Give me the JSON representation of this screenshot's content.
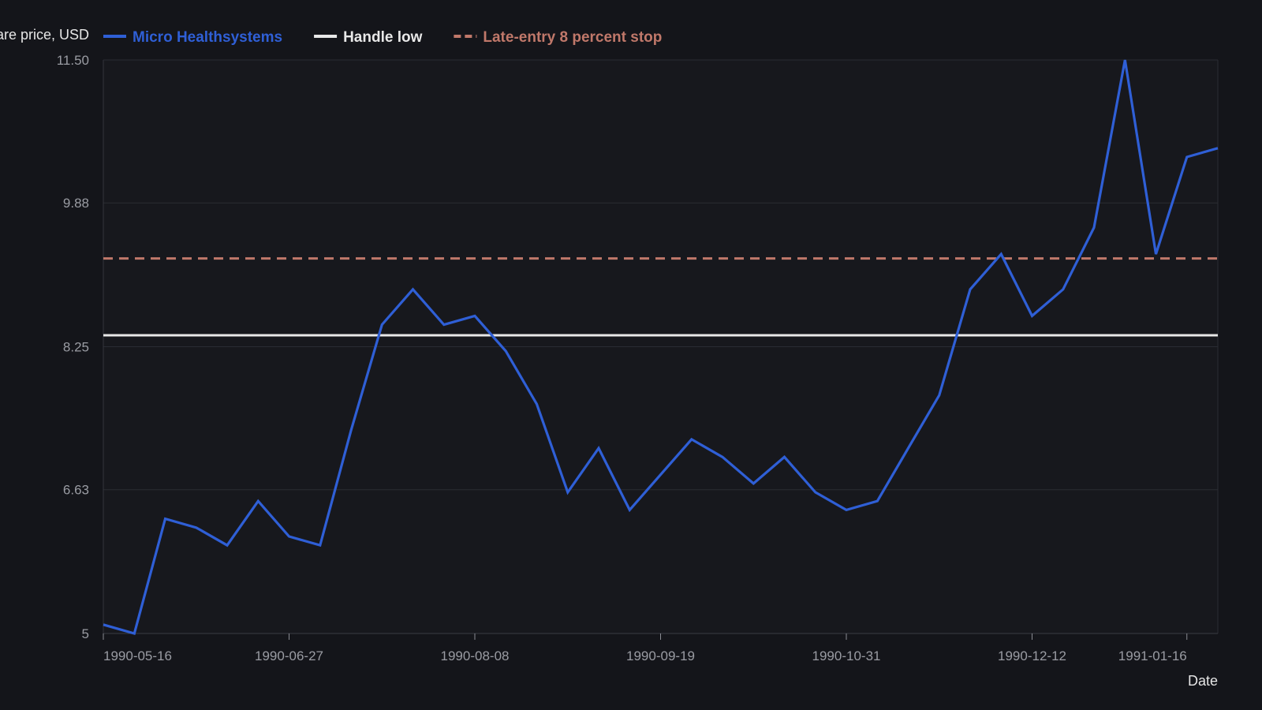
{
  "chart_data": {
    "type": "line",
    "xlabel": "Date",
    "ylabel": "Share price, USD",
    "ylim": [
      5,
      11.5
    ],
    "yticks": [
      5,
      6.63,
      8.25,
      9.88,
      11.5
    ],
    "ytick_labels": [
      "5",
      "6.63",
      "8.25",
      "9.88",
      "11.50"
    ],
    "xticks": [
      "1990-05-16",
      "1990-06-27",
      "1990-08-08",
      "1990-09-19",
      "1990-10-31",
      "1990-12-12",
      "1991-01-16"
    ],
    "xlim": [
      "1990-05-16",
      "1991-01-23"
    ],
    "grid": "horizontal",
    "legend_position": "top-left",
    "series": [
      {
        "name": "Micro Healthsystems",
        "color": "#2f5fd6",
        "style": "solid",
        "x": [
          "1990-05-16",
          "1990-05-23",
          "1990-05-30",
          "1990-06-06",
          "1990-06-13",
          "1990-06-20",
          "1990-06-27",
          "1990-07-04",
          "1990-07-11",
          "1990-07-18",
          "1990-07-25",
          "1990-08-01",
          "1990-08-08",
          "1990-08-15",
          "1990-08-22",
          "1990-08-29",
          "1990-09-05",
          "1990-09-12",
          "1990-09-19",
          "1990-09-26",
          "1990-10-03",
          "1990-10-10",
          "1990-10-17",
          "1990-10-24",
          "1990-10-31",
          "1990-11-07",
          "1990-11-14",
          "1990-11-21",
          "1990-11-28",
          "1990-12-05",
          "1990-12-12",
          "1990-12-19",
          "1990-12-26",
          "1991-01-02",
          "1991-01-09",
          "1991-01-16",
          "1991-01-23"
        ],
        "values": [
          5.1,
          5.0,
          6.3,
          6.2,
          6.0,
          6.5,
          6.1,
          6.0,
          7.3,
          8.5,
          8.9,
          8.5,
          8.6,
          8.2,
          7.6,
          6.6,
          7.1,
          6.4,
          6.8,
          7.2,
          7.0,
          6.7,
          7.0,
          6.6,
          6.4,
          6.5,
          7.1,
          7.7,
          8.9,
          9.3,
          8.6,
          8.9,
          9.6,
          11.5,
          9.3,
          10.4,
          10.5
        ]
      },
      {
        "name": "Handle low",
        "color": "#e8e8e8",
        "style": "solid",
        "value": 8.38
      },
      {
        "name": "Late-entry 8 percent stop",
        "color": "#c0786a",
        "style": "dashed",
        "value": 9.25
      }
    ]
  }
}
